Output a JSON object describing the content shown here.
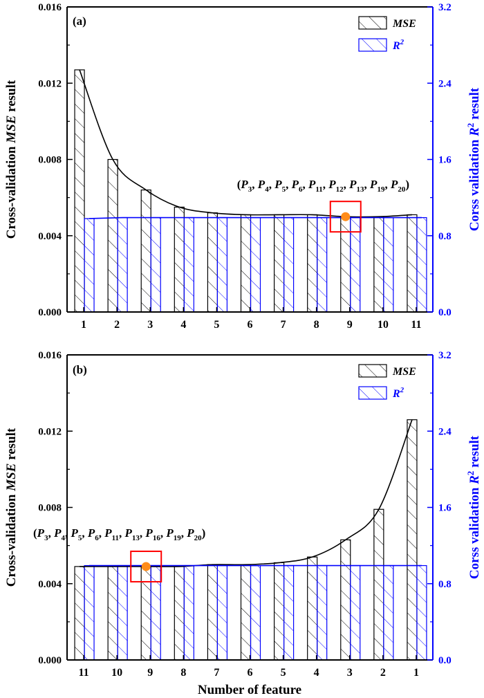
{
  "colors": {
    "mse": "#000000",
    "r2": "#0000ff",
    "highlight_box": "#ff0000",
    "highlight_point": "#ff8c1a"
  },
  "xlabel": "Number of feature",
  "chart_data": [
    {
      "panel_label": "(a)",
      "type": "bar",
      "categories": [
        "1",
        "2",
        "3",
        "4",
        "5",
        "6",
        "7",
        "8",
        "9",
        "10",
        "11"
      ],
      "series": [
        {
          "name": "MSE",
          "axis": "left",
          "pattern": "hatch",
          "values": [
            0.0127,
            0.008,
            0.0064,
            0.0055,
            0.0052,
            0.0051,
            0.0051,
            0.0051,
            0.005,
            0.005,
            0.0051
          ]
        },
        {
          "name": "R2",
          "axis": "right",
          "pattern": "hatch",
          "values": [
            0.98,
            0.99,
            0.99,
            0.99,
            0.99,
            0.99,
            0.99,
            0.99,
            0.99,
            0.99,
            0.99
          ]
        }
      ],
      "trend_line": {
        "series": "MSE",
        "shape": "exponential decay"
      },
      "left_axis": {
        "label_parts": [
          "Cross-validation ",
          "MSE",
          " result"
        ],
        "ylim": [
          0,
          0.016
        ],
        "ticks": [
          "0.000",
          "0.004",
          "0.008",
          "0.012",
          "0.016"
        ]
      },
      "right_axis": {
        "label_parts": [
          "Corss validation ",
          "R",
          "2",
          " result"
        ],
        "ylim": [
          0,
          3.2
        ],
        "ticks": [
          "0.0",
          "0.8",
          "1.6",
          "2.4",
          "3.2"
        ]
      },
      "legend": {
        "position": "top-right",
        "items": [
          {
            "base": "MSE",
            "sup": ""
          },
          {
            "base": "R",
            "sup": "2"
          }
        ]
      },
      "highlight": {
        "category": "9",
        "value": 0.005
      },
      "annotation": {
        "parts": [
          {
            "t": "(",
            "s": ""
          },
          {
            "t": "P",
            "s": "3"
          },
          {
            "t": ", ",
            "s": ""
          },
          {
            "t": "P",
            "s": "4"
          },
          {
            "t": ", ",
            "s": ""
          },
          {
            "t": "P",
            "s": "5"
          },
          {
            "t": ", ",
            "s": ""
          },
          {
            "t": "P",
            "s": "6"
          },
          {
            "t": ", ",
            "s": ""
          },
          {
            "t": "P",
            "s": "11"
          },
          {
            "t": ", ",
            "s": ""
          },
          {
            "t": "P",
            "s": "12"
          },
          {
            "t": ", ",
            "s": ""
          },
          {
            "t": "P",
            "s": "13"
          },
          {
            "t": ", ",
            "s": ""
          },
          {
            "t": "P",
            "s": "19"
          },
          {
            "t": ", ",
            "s": ""
          },
          {
            "t": "P",
            "s": "20"
          },
          {
            "t": ")",
            "s": ""
          }
        ]
      }
    },
    {
      "panel_label": "(b)",
      "type": "bar",
      "categories": [
        "11",
        "10",
        "9",
        "8",
        "7",
        "6",
        "5",
        "4",
        "3",
        "2",
        "1"
      ],
      "series": [
        {
          "name": "MSE",
          "axis": "left",
          "pattern": "hatch",
          "values": [
            0.0049,
            0.0049,
            0.0049,
            0.0049,
            0.005,
            0.005,
            0.0051,
            0.0054,
            0.0063,
            0.0079,
            0.0126
          ]
        },
        {
          "name": "R2",
          "axis": "right",
          "pattern": "hatch",
          "values": [
            0.99,
            0.99,
            0.99,
            0.99,
            0.99,
            0.99,
            0.99,
            0.99,
            0.99,
            0.99,
            0.99
          ]
        }
      ],
      "trend_line": {
        "series": "MSE",
        "shape": "exponential growth"
      },
      "left_axis": {
        "label_parts": [
          "Cross-validation ",
          "MSE",
          " result"
        ],
        "ylim": [
          0,
          0.016
        ],
        "ticks": [
          "0.000",
          "0.004",
          "0.008",
          "0.012",
          "0.016"
        ]
      },
      "right_axis": {
        "label_parts": [
          "Corss validation ",
          "R",
          "2",
          " result"
        ],
        "ylim": [
          0,
          3.2
        ],
        "ticks": [
          "0.0",
          "0.8",
          "1.6",
          "2.4",
          "3.2"
        ]
      },
      "legend": {
        "position": "top-right",
        "items": [
          {
            "base": "MSE",
            "sup": ""
          },
          {
            "base": "R",
            "sup": "2"
          }
        ]
      },
      "highlight": {
        "category": "9",
        "value": 0.0049
      },
      "annotation": {
        "parts": [
          {
            "t": "(",
            "s": ""
          },
          {
            "t": "P",
            "s": "3"
          },
          {
            "t": ", ",
            "s": ""
          },
          {
            "t": "P",
            "s": "4"
          },
          {
            "t": ", ",
            "s": ""
          },
          {
            "t": "P",
            "s": "5"
          },
          {
            "t": ", ",
            "s": ""
          },
          {
            "t": "P",
            "s": "6"
          },
          {
            "t": ", ",
            "s": ""
          },
          {
            "t": "P",
            "s": "11"
          },
          {
            "t": ", ",
            "s": ""
          },
          {
            "t": "P",
            "s": "13"
          },
          {
            "t": ", ",
            "s": ""
          },
          {
            "t": "P",
            "s": "16"
          },
          {
            "t": ", ",
            "s": ""
          },
          {
            "t": "P",
            "s": "19"
          },
          {
            "t": ", ",
            "s": ""
          },
          {
            "t": "P",
            "s": "20"
          },
          {
            "t": ")",
            "s": ""
          }
        ]
      }
    }
  ]
}
